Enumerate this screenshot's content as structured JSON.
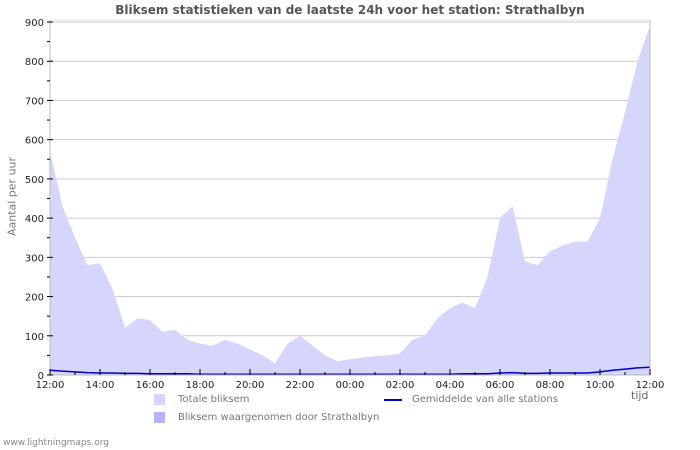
{
  "title": "Bliksem statistieken van de laatste 24h voor het station: Strathalbyn",
  "y_axis_label": "Aantal per uur",
  "x_axis_label": "tijd",
  "footer": "www.lightningmaps.org",
  "legend": {
    "items": [
      {
        "label": "Totale bliksem",
        "color": "#d6d6fc",
        "kind": "area"
      },
      {
        "label": "Bliksem waargenomen door Strathalbyn",
        "color": "#b4b4f8",
        "kind": "area"
      },
      {
        "label": "Gemiddelde van alle stations",
        "color": "#0000cc",
        "kind": "line"
      }
    ]
  },
  "colors": {
    "total_fill": "#d6d6fc",
    "station_fill": "#b4b4f8",
    "average_line": "#0000cc",
    "grid": "#cccccc",
    "axis": "#bbbbbb"
  },
  "chart_data": {
    "type": "area",
    "title": "Bliksem statistieken van de laatste 24h voor het station: Strathalbyn",
    "xlabel": "tijd",
    "ylabel": "Aantal per uur",
    "ylim": [
      0,
      900
    ],
    "yticks": [
      0,
      100,
      200,
      300,
      400,
      500,
      600,
      700,
      800,
      900
    ],
    "xtick_labels": [
      "12:00",
      "14:00",
      "16:00",
      "18:00",
      "20:00",
      "22:00",
      "00:00",
      "02:00",
      "04:00",
      "06:00",
      "08:00",
      "10:00",
      "12:00"
    ],
    "grid": true,
    "legend_position": "bottom",
    "x": [
      "12:00",
      "12:30",
      "13:00",
      "13:30",
      "14:00",
      "14:30",
      "15:00",
      "15:30",
      "16:00",
      "16:30",
      "17:00",
      "17:30",
      "18:00",
      "18:30",
      "19:00",
      "19:30",
      "20:00",
      "20:30",
      "21:00",
      "21:30",
      "22:00",
      "22:30",
      "23:00",
      "23:30",
      "00:00",
      "00:30",
      "01:00",
      "01:30",
      "02:00",
      "02:30",
      "03:00",
      "03:30",
      "04:00",
      "04:30",
      "05:00",
      "05:30",
      "06:00",
      "06:30",
      "07:00",
      "07:30",
      "08:00",
      "08:30",
      "09:00",
      "09:30",
      "10:00",
      "10:30",
      "11:00",
      "11:30",
      "12:00"
    ],
    "series": [
      {
        "name": "Totale bliksem",
        "values": [
          570,
          430,
          350,
          280,
          285,
          220,
          120,
          145,
          140,
          110,
          115,
          90,
          80,
          75,
          90,
          80,
          65,
          50,
          30,
          80,
          100,
          75,
          50,
          35,
          40,
          45,
          48,
          50,
          55,
          90,
          100,
          145,
          170,
          185,
          170,
          250,
          400,
          430,
          290,
          280,
          315,
          330,
          340,
          340,
          400,
          550,
          670,
          800,
          890
        ]
      },
      {
        "name": "Bliksem waargenomen door Strathalbyn",
        "values": [
          0,
          0,
          0,
          0,
          0,
          0,
          0,
          0,
          0,
          0,
          0,
          0,
          0,
          0,
          0,
          0,
          0,
          0,
          0,
          0,
          0,
          0,
          0,
          0,
          0,
          0,
          0,
          0,
          0,
          0,
          0,
          0,
          0,
          0,
          0,
          0,
          0,
          0,
          0,
          0,
          0,
          0,
          0,
          0,
          0,
          0,
          0,
          0,
          0
        ]
      },
      {
        "name": "Gemiddelde van alle stations",
        "values": [
          12,
          10,
          8,
          6,
          5,
          5,
          4,
          4,
          3,
          3,
          3,
          3,
          2,
          2,
          2,
          2,
          2,
          2,
          2,
          2,
          2,
          2,
          2,
          2,
          2,
          2,
          2,
          2,
          2,
          2,
          2,
          2,
          2,
          3,
          3,
          3,
          5,
          6,
          4,
          4,
          5,
          5,
          5,
          5,
          8,
          12,
          15,
          18,
          20
        ]
      }
    ]
  }
}
